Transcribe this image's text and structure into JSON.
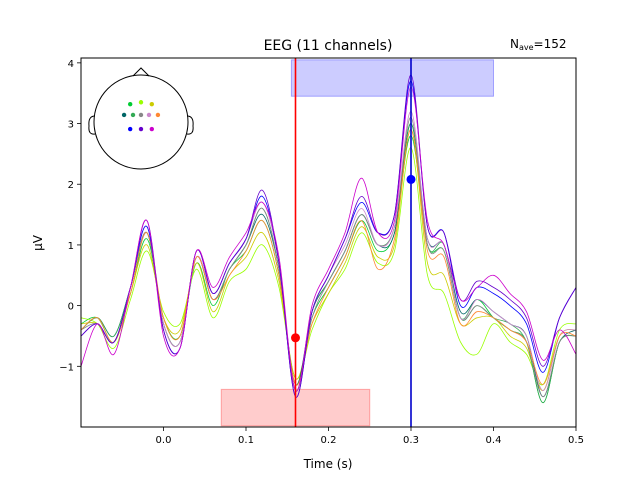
{
  "chart_data": {
    "type": "line",
    "title": "EEG (11 channels)",
    "nave_label": "N",
    "nave_sub": "ave",
    "nave_value": "=152",
    "xlabel": "Time (s)",
    "ylabel": "µV",
    "xlim": [
      -0.1,
      0.5
    ],
    "ylim": [
      -2.0,
      4.08
    ],
    "xticks": [
      0.0,
      0.1,
      0.2,
      0.3,
      0.4,
      0.5
    ],
    "xtick_labels": [
      "0.0",
      "0.1",
      "0.2",
      "0.3",
      "0.4",
      "0.5"
    ],
    "yticks": [
      -1,
      0,
      1,
      2,
      3,
      4
    ],
    "ytick_labels": [
      "−1",
      "0",
      "1",
      "2",
      "3",
      "4"
    ],
    "grid": false,
    "highlight_regions": [
      {
        "x": [
          0.155,
          0.4
        ],
        "y": [
          3.45,
          4.05
        ],
        "color": "#0000ff"
      },
      {
        "x": [
          0.07,
          0.25
        ],
        "y": [
          -1.38,
          -1.98
        ],
        "color": "#ff0000"
      }
    ],
    "vlines": [
      {
        "x": 0.16,
        "color": "#ff0000"
      },
      {
        "x": 0.3,
        "color": "#0000cc"
      }
    ],
    "peak_markers": [
      {
        "x": 0.16,
        "y": -0.53,
        "color": "#ff0000"
      },
      {
        "x": 0.3,
        "y": 2.08,
        "color": "#0000ff"
      }
    ],
    "sensors": [
      {
        "lx": -0.23,
        "ly": 0.38,
        "color": "#00cc33"
      },
      {
        "lx": 0.0,
        "ly": 0.42,
        "color": "#99ff00"
      },
      {
        "lx": 0.23,
        "ly": 0.38,
        "color": "#cccc00"
      },
      {
        "lx": -0.36,
        "ly": 0.15,
        "color": "#006666"
      },
      {
        "lx": -0.17,
        "ly": 0.15,
        "color": "#33aa55"
      },
      {
        "lx": 0.0,
        "ly": 0.15,
        "color": "#888888"
      },
      {
        "lx": 0.17,
        "ly": 0.15,
        "color": "#cc88cc"
      },
      {
        "lx": 0.36,
        "ly": 0.15,
        "color": "#ff8833"
      },
      {
        "lx": -0.23,
        "ly": -0.15,
        "color": "#0000ff"
      },
      {
        "lx": 0.0,
        "ly": -0.15,
        "color": "#6600cc"
      },
      {
        "lx": 0.23,
        "ly": -0.15,
        "color": "#cc00cc"
      }
    ],
    "x": [
      -0.1,
      -0.08,
      -0.06,
      -0.04,
      -0.02,
      0.0,
      0.02,
      0.04,
      0.06,
      0.08,
      0.1,
      0.12,
      0.14,
      0.16,
      0.18,
      0.2,
      0.22,
      0.24,
      0.26,
      0.28,
      0.3,
      0.32,
      0.34,
      0.36,
      0.38,
      0.4,
      0.42,
      0.44,
      0.46,
      0.48,
      0.5
    ],
    "series": [
      {
        "color": "#00cc33",
        "values": [
          -0.3,
          -0.2,
          -0.6,
          0.2,
          1.1,
          -0.2,
          -0.5,
          0.7,
          0.0,
          0.6,
          0.9,
          1.4,
          0.5,
          -1.3,
          -0.2,
          0.3,
          0.8,
          1.4,
          0.9,
          1.2,
          2.8,
          1.0,
          0.9,
          -0.2,
          0.1,
          -0.2,
          -0.4,
          -0.6,
          -1.6,
          -0.6,
          -0.5
        ]
      },
      {
        "color": "#99ff00",
        "values": [
          -0.2,
          -0.3,
          -0.7,
          0.1,
          0.9,
          -0.1,
          -0.3,
          0.6,
          -0.2,
          0.4,
          0.6,
          1.0,
          0.3,
          -1.2,
          -0.4,
          0.2,
          0.6,
          1.2,
          0.7,
          0.9,
          2.6,
          0.5,
          0.2,
          -0.6,
          -0.8,
          -0.3,
          -0.6,
          -0.8,
          -1.3,
          -0.4,
          -0.3
        ]
      },
      {
        "color": "#cccc00",
        "values": [
          -0.3,
          -0.3,
          -0.6,
          0.2,
          1.0,
          -0.2,
          -0.4,
          0.7,
          -0.1,
          0.5,
          0.8,
          1.2,
          0.4,
          -1.2,
          -0.3,
          0.2,
          0.7,
          1.3,
          0.8,
          1.0,
          2.9,
          0.7,
          0.5,
          -0.3,
          -0.2,
          -0.2,
          -0.5,
          -0.7,
          -1.4,
          -0.5,
          -0.4
        ]
      },
      {
        "color": "#006666",
        "values": [
          -0.4,
          -0.2,
          -0.5,
          0.3,
          1.2,
          -0.3,
          -0.6,
          0.8,
          0.1,
          0.6,
          1.0,
          1.5,
          0.6,
          -1.3,
          -0.1,
          0.4,
          0.9,
          1.5,
          1.0,
          1.2,
          3.0,
          1.1,
          1.0,
          -0.1,
          0.1,
          -0.1,
          -0.3,
          -0.5,
          -1.5,
          -0.6,
          -0.4
        ]
      },
      {
        "color": "#33aa55",
        "values": [
          -0.4,
          -0.2,
          -0.5,
          0.3,
          1.2,
          -0.3,
          -0.6,
          0.8,
          0.1,
          0.6,
          1.0,
          1.6,
          0.6,
          -1.4,
          -0.1,
          0.4,
          0.9,
          1.5,
          1.0,
          1.3,
          3.0,
          1.0,
          1.0,
          -0.2,
          0.0,
          -0.2,
          -0.3,
          -0.6,
          -1.6,
          -0.6,
          -0.5
        ]
      },
      {
        "color": "#888888",
        "values": [
          -0.4,
          -0.3,
          -0.6,
          0.3,
          1.2,
          -0.3,
          -0.6,
          0.8,
          0.1,
          0.6,
          1.0,
          1.6,
          0.6,
          -1.4,
          -0.2,
          0.4,
          0.9,
          1.5,
          1.0,
          1.3,
          3.1,
          1.0,
          0.9,
          -0.2,
          0.0,
          -0.2,
          -0.4,
          -0.6,
          -1.5,
          -0.6,
          -0.5
        ]
      },
      {
        "color": "#cc88cc",
        "values": [
          -0.5,
          -0.3,
          -0.6,
          0.3,
          1.3,
          -0.3,
          -0.6,
          0.8,
          0.2,
          0.7,
          1.1,
          1.7,
          0.7,
          -1.4,
          -0.1,
          0.5,
          1.0,
          1.6,
          1.0,
          1.3,
          3.2,
          1.1,
          1.0,
          -0.2,
          0.1,
          -0.1,
          -0.3,
          -0.5,
          -1.4,
          -0.5,
          -0.4
        ]
      },
      {
        "color": "#ff8833",
        "values": [
          -0.4,
          -0.2,
          -0.6,
          0.2,
          1.2,
          -0.2,
          -0.5,
          0.8,
          0.1,
          0.5,
          0.9,
          1.4,
          0.5,
          -1.3,
          -0.3,
          0.3,
          0.8,
          1.4,
          0.6,
          1.1,
          2.9,
          0.9,
          0.8,
          -0.3,
          -0.1,
          -0.2,
          -0.4,
          -0.6,
          -1.3,
          -0.5,
          -0.5
        ]
      },
      {
        "color": "#0000ff",
        "values": [
          -0.5,
          -0.3,
          -0.6,
          0.3,
          1.3,
          -0.4,
          -0.7,
          0.9,
          0.2,
          0.7,
          1.1,
          1.8,
          0.7,
          -1.5,
          -0.1,
          0.5,
          1.1,
          1.7,
          1.2,
          1.5,
          3.7,
          1.3,
          1.2,
          0.0,
          0.3,
          0.2,
          0.0,
          -0.3,
          -1.1,
          -0.2,
          0.3
        ]
      },
      {
        "color": "#6600cc",
        "values": [
          -0.5,
          -0.3,
          -0.6,
          0.3,
          1.4,
          -0.4,
          -0.7,
          0.9,
          0.2,
          0.7,
          1.1,
          1.9,
          0.7,
          -1.5,
          -0.1,
          0.5,
          1.1,
          1.8,
          1.2,
          1.5,
          3.8,
          1.3,
          1.2,
          0.1,
          0.4,
          0.3,
          0.1,
          -0.2,
          -1.0,
          -0.2,
          0.3
        ]
      },
      {
        "color": "#cc00cc",
        "values": [
          -1.0,
          -0.3,
          -0.8,
          0.3,
          1.4,
          -0.5,
          -0.7,
          0.9,
          0.3,
          0.8,
          1.2,
          1.7,
          0.8,
          -1.4,
          0.0,
          0.6,
          1.2,
          2.1,
          1.2,
          1.4,
          3.6,
          1.4,
          1.0,
          0.1,
          0.3,
          0.5,
          0.2,
          -0.1,
          -0.9,
          -0.4,
          -0.8
        ]
      }
    ]
  }
}
